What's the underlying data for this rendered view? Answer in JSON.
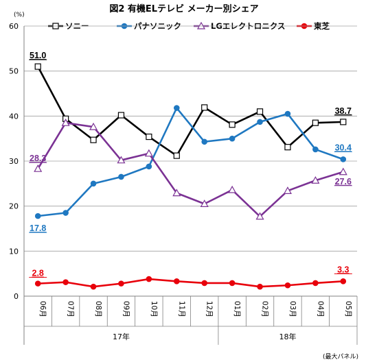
{
  "chart_data": {
    "type": "line",
    "title": "図2 有機ELテレビ メーカー別シェア",
    "ylabel": "",
    "y_unit": "(%)",
    "ylim": [
      0,
      60
    ],
    "yticks": [
      0,
      10,
      20,
      30,
      40,
      50,
      60
    ],
    "categories": [
      "06月",
      "07月",
      "08月",
      "09月",
      "10月",
      "11月",
      "12月",
      "01月",
      "02月",
      "03月",
      "04月",
      "05月"
    ],
    "year_groups": [
      {
        "label": "17年",
        "start": 0,
        "end": 6
      },
      {
        "label": "18年",
        "start": 7,
        "end": 11
      }
    ],
    "grid": "horizontal",
    "legend_position": "top",
    "note": "(最大パネル)",
    "series": [
      {
        "name": "ソニー",
        "color": "#000000",
        "marker": "square",
        "values": [
          51.0,
          39.4,
          34.7,
          40.2,
          35.4,
          31.2,
          41.9,
          38.1,
          41.0,
          33.1,
          38.5,
          38.7
        ],
        "labels": [
          {
            "index": 0,
            "text": "51.0"
          },
          {
            "index": 11,
            "text": "38.7"
          }
        ]
      },
      {
        "name": "パナソニック",
        "color": "#1f78c1",
        "marker": "circle",
        "values": [
          17.8,
          18.5,
          25.0,
          26.5,
          28.8,
          41.8,
          34.3,
          35.0,
          38.7,
          40.5,
          32.6,
          30.4
        ],
        "labels": [
          {
            "index": 0,
            "text": "17.8"
          },
          {
            "index": 11,
            "text": "30.4"
          }
        ]
      },
      {
        "name": "LGエレクトロニクス",
        "color": "#7b3294",
        "marker": "triangle",
        "values": [
          28.3,
          38.5,
          37.6,
          30.2,
          31.7,
          22.9,
          20.5,
          23.6,
          17.7,
          23.4,
          25.7,
          27.6
        ],
        "labels": [
          {
            "index": 0,
            "text": "28.3"
          },
          {
            "index": 11,
            "text": "27.6"
          }
        ]
      },
      {
        "name": "東芝",
        "color": "#e8000b",
        "marker": "dot",
        "values": [
          2.8,
          3.1,
          2.1,
          2.8,
          3.8,
          3.3,
          2.9,
          2.9,
          2.1,
          2.4,
          2.9,
          3.3
        ],
        "labels": [
          {
            "index": 0,
            "text": "2.8"
          },
          {
            "index": 11,
            "text": "3.3"
          }
        ]
      }
    ]
  }
}
